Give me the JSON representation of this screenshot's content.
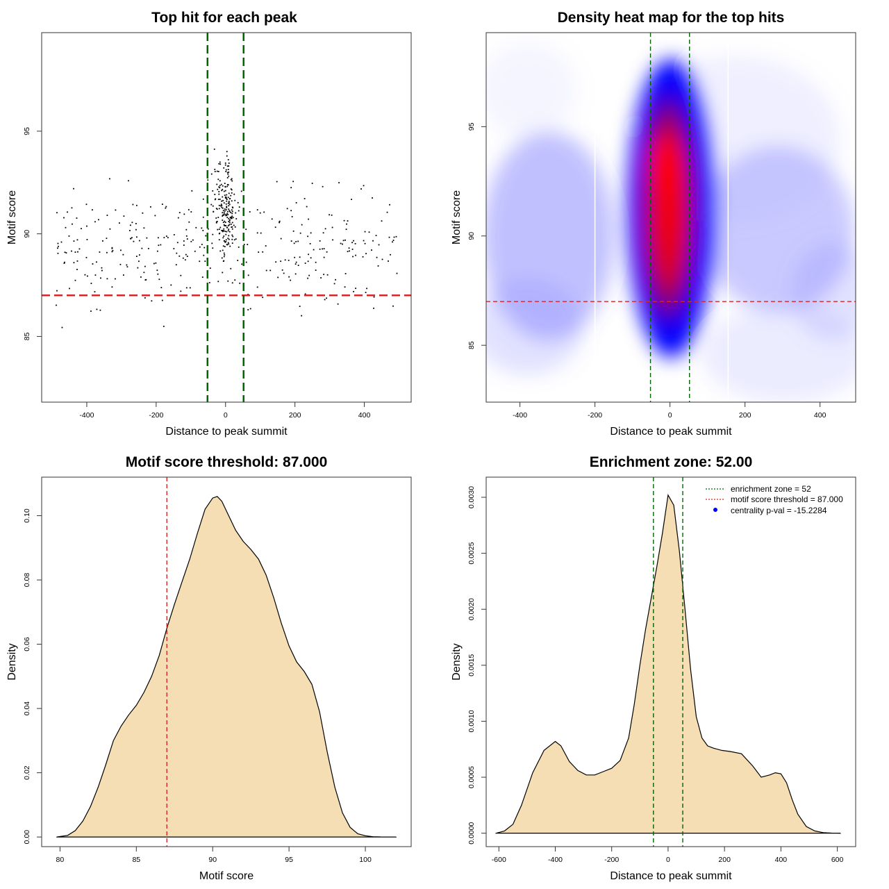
{
  "chart_data": [
    {
      "type": "scatter",
      "title": "Top hit for each peak",
      "xlabel": "Distance to peak summit",
      "ylabel": "Motif score",
      "xlim": [
        -530,
        535
      ],
      "ylim": [
        81.8,
        99.8
      ],
      "xticks": [
        -400,
        -200,
        0,
        200,
        400
      ],
      "yticks": [
        85,
        90,
        95
      ],
      "threshold": {
        "value": 87.0,
        "color": "#d62728"
      },
      "zone_lines": {
        "x": [
          -52,
          52
        ],
        "color": "#006400"
      },
      "point_color": "#000000"
    },
    {
      "type": "heatmap",
      "title": "Density heat map for the top hits",
      "xlabel": "Distance to peak summit",
      "ylabel": "Motif score",
      "xlim": [
        -490,
        495
      ],
      "ylim": [
        82.4,
        99.3
      ],
      "xticks": [
        -400,
        -200,
        0,
        200,
        400
      ],
      "yticks": [
        85,
        90,
        95
      ],
      "threshold": {
        "value": 87.0,
        "color": "#d62728"
      },
      "zone_lines": {
        "x": [
          -52,
          52
        ],
        "color": "#006400"
      },
      "white_lines": {
        "x": [
          -200,
          155
        ]
      },
      "colors": {
        "low": "#ffffff",
        "mid": "#0000ff",
        "high": "#ff0000"
      }
    },
    {
      "type": "area",
      "title": "Motif score threshold: 87.000",
      "xlabel": "Motif score",
      "ylabel": "Density",
      "xlim": [
        78.8,
        103
      ],
      "ylim": [
        -0.003,
        0.112
      ],
      "xticks": [
        80,
        85,
        90,
        95,
        100
      ],
      "yticks": [
        0,
        0.02,
        0.04,
        0.06,
        0.08,
        0.1
      ],
      "ytick_labels": [
        "0.00",
        "0.02",
        "0.04",
        "0.06",
        "0.08",
        "0.10"
      ],
      "fill_color": "#f5deb3",
      "threshold": {
        "value": 87.0,
        "color": "#d62728"
      },
      "x": [
        79.8,
        80.5,
        81,
        81.5,
        82,
        82.5,
        83,
        83.5,
        84,
        84.5,
        85,
        85.5,
        86,
        86.5,
        87,
        87.5,
        88,
        88.5,
        89,
        89.5,
        90,
        90.3,
        90.6,
        91,
        91.5,
        92,
        92.5,
        93,
        93.5,
        94,
        94.5,
        95,
        95.5,
        96,
        96.5,
        97,
        97.5,
        98,
        98.5,
        99,
        99.5,
        100,
        100.5,
        101,
        102
      ],
      "values": [
        0,
        0.0005,
        0.002,
        0.005,
        0.0095,
        0.0155,
        0.0225,
        0.03,
        0.0345,
        0.038,
        0.041,
        0.045,
        0.05,
        0.0565,
        0.065,
        0.0725,
        0.0795,
        0.0865,
        0.0945,
        0.102,
        0.1055,
        0.106,
        0.1045,
        0.1005,
        0.0955,
        0.092,
        0.0895,
        0.0865,
        0.0815,
        0.0745,
        0.0665,
        0.0595,
        0.0545,
        0.0515,
        0.0475,
        0.039,
        0.0265,
        0.0155,
        0.0075,
        0.003,
        0.001,
        0.0004,
        0.0001,
        3e-05,
        0
      ]
    },
    {
      "type": "area",
      "title": "Enrichment zone: 52.00",
      "xlabel": "Distance to peak summit",
      "ylabel": "Density",
      "xlim": [
        -645,
        665
      ],
      "ylim": [
        -0.00012,
        0.00318
      ],
      "xticks": [
        -600,
        -400,
        -200,
        0,
        200,
        400,
        600
      ],
      "yticks": [
        0,
        0.0005,
        0.001,
        0.0015,
        0.002,
        0.0025,
        0.003
      ],
      "ytick_labels": [
        "0.0000",
        "0.0005",
        "0.0010",
        "0.0015",
        "0.0020",
        "0.0025",
        "0.0030"
      ],
      "fill_color": "#f5deb3",
      "zone_lines": {
        "x": [
          -52,
          52
        ],
        "color": "#006400"
      },
      "x": [
        -610,
        -580,
        -550,
        -520,
        -480,
        -440,
        -400,
        -380,
        -350,
        -320,
        -290,
        -260,
        -230,
        -200,
        -170,
        -140,
        -120,
        -100,
        -80,
        -60,
        -40,
        -20,
        0,
        20,
        40,
        60,
        80,
        100,
        120,
        140,
        160,
        190,
        220,
        260,
        300,
        330,
        360,
        380,
        400,
        420,
        440,
        460,
        490,
        520,
        550,
        580,
        610
      ],
      "values": [
        0,
        2e-05,
        8e-05,
        0.00025,
        0.00054,
        0.00074,
        0.00082,
        0.00078,
        0.00064,
        0.00056,
        0.00052,
        0.00052,
        0.00055,
        0.00058,
        0.00065,
        0.00085,
        0.00115,
        0.0015,
        0.00182,
        0.0021,
        0.00238,
        0.00268,
        0.00302,
        0.00293,
        0.00252,
        0.002,
        0.00146,
        0.00104,
        0.00085,
        0.00078,
        0.00076,
        0.00074,
        0.00073,
        0.00071,
        0.0006,
        0.0005,
        0.00052,
        0.00054,
        0.00053,
        0.00045,
        0.0003,
        0.00017,
        6e-05,
        2e-05,
        5e-06,
        1e-06,
        0
      ]
    }
  ],
  "legend": {
    "items": [
      {
        "label": "enrichment zone = 52",
        "color": "#006400",
        "kind": "line"
      },
      {
        "label": "motif score threshold = 87.000",
        "color": "#d62728",
        "kind": "line"
      },
      {
        "label": "centrality p-val = -15.2284",
        "color": "#0000ff",
        "kind": "point"
      }
    ]
  }
}
